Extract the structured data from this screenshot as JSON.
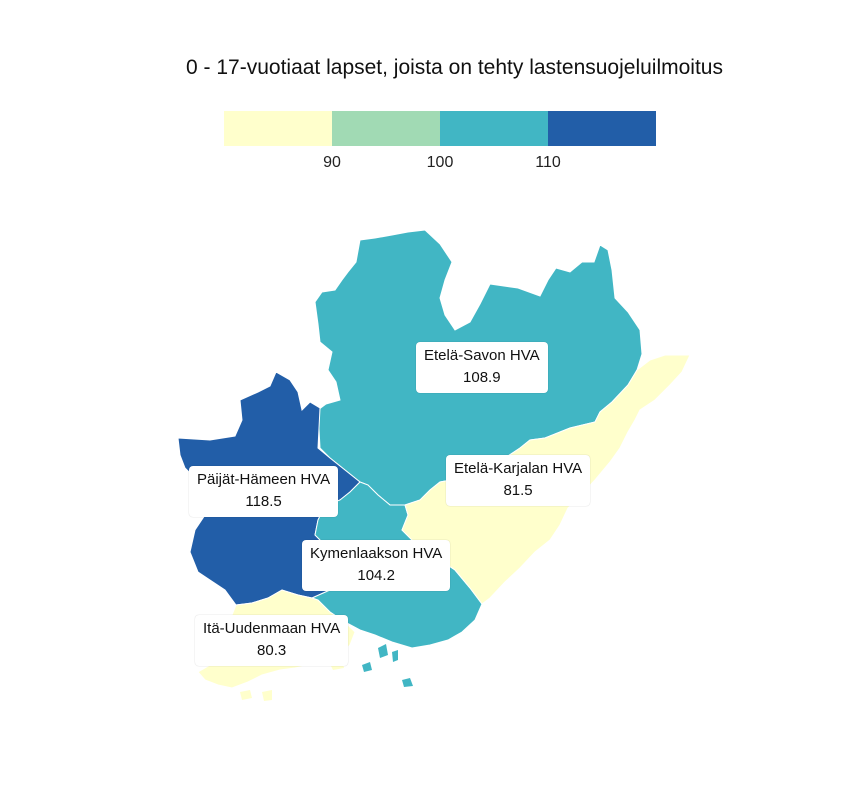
{
  "title": "0 - 17-vuotiaat lapset, joista on tehty lastensuojeluilmoitus",
  "legend": {
    "colors": [
      "#ffffcc",
      "#a1dab4",
      "#41b6c4",
      "#225ea8"
    ],
    "ticks": [
      "90",
      "100",
      "110"
    ]
  },
  "regions": [
    {
      "name": "Etelä-Savon HVA",
      "value": "108.9",
      "color": "#41b6c4"
    },
    {
      "name": "Etelä-Karjalan HVA",
      "value": "81.5",
      "color": "#ffffcc"
    },
    {
      "name": "Päijät-Hämeen HVA",
      "value": "118.5",
      "color": "#225ea8"
    },
    {
      "name": "Kymenlaakson HVA",
      "value": "104.2",
      "color": "#41b6c4"
    },
    {
      "name": "Itä-Uudenmaan HVA",
      "value": "80.3",
      "color": "#ffffcc"
    }
  ]
}
